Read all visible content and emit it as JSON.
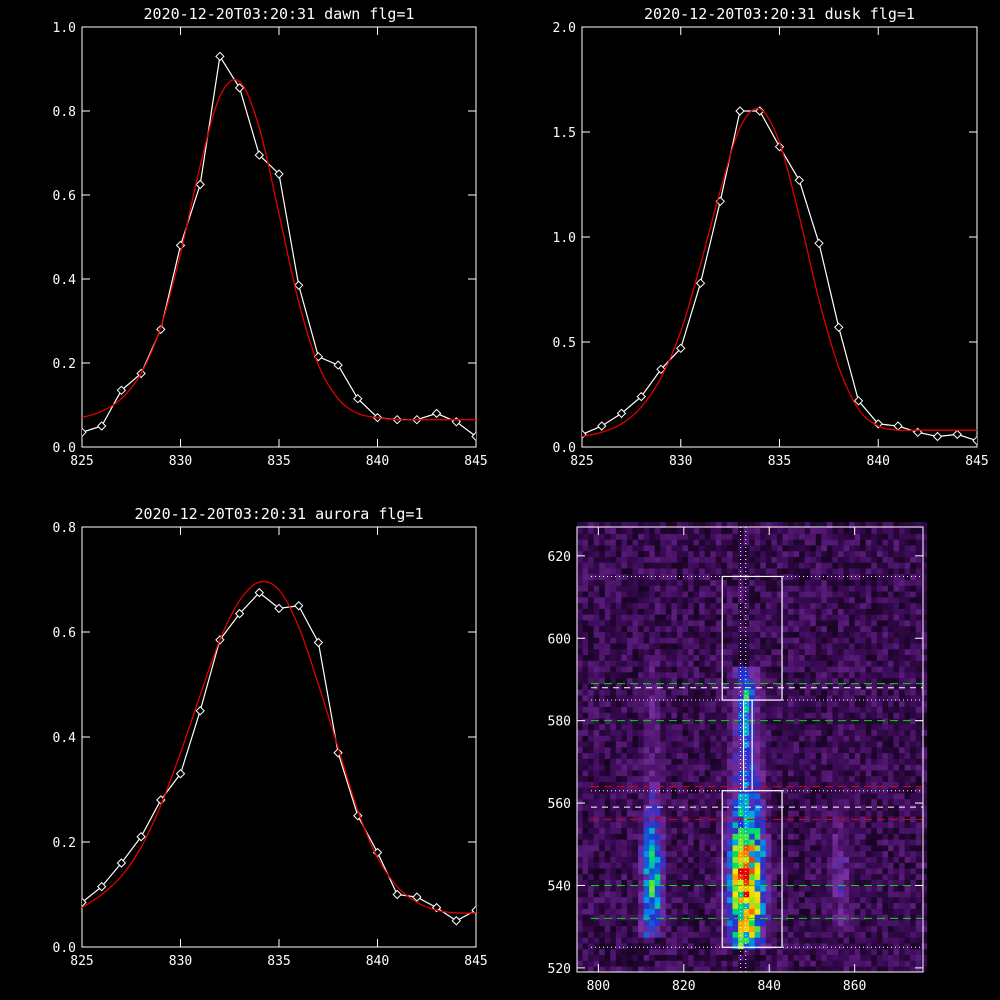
{
  "chart_data": [
    {
      "type": "line",
      "title": "2020-12-20T03:20:31 dawn flg=1",
      "xlim": [
        825,
        845
      ],
      "ylim": [
        0,
        1.0
      ],
      "xticks": [
        825,
        830,
        835,
        840,
        845
      ],
      "yticks": [
        0.0,
        0.2,
        0.4,
        0.6,
        0.8,
        1.0
      ],
      "ytick_labels": [
        "0.0",
        "0.2",
        "0.4",
        "0.6",
        "0.8",
        "1.0"
      ],
      "series": [
        {
          "style": "data",
          "color": "#ffffff",
          "marker": "diamond",
          "x": [
            825,
            826,
            827,
            828,
            829,
            830,
            831,
            832,
            833,
            834,
            835,
            836,
            837,
            838,
            839,
            840,
            841,
            842,
            843,
            844,
            845
          ],
          "y": [
            0.035,
            0.05,
            0.135,
            0.175,
            0.28,
            0.48,
            0.625,
            0.93,
            0.855,
            0.695,
            0.65,
            0.385,
            0.215,
            0.195,
            0.115,
            0.07,
            0.065,
            0.065,
            0.08,
            0.06,
            0.025
          ]
        },
        {
          "style": "fit",
          "color": "#dd0000",
          "x": [
            825,
            826,
            827,
            828,
            829,
            830,
            831,
            832,
            833,
            834,
            835,
            836,
            837,
            838,
            839,
            840,
            841,
            842,
            843,
            844,
            845
          ],
          "y": [
            0.07,
            0.085,
            0.115,
            0.175,
            0.285,
            0.46,
            0.67,
            0.835,
            0.87,
            0.76,
            0.555,
            0.345,
            0.195,
            0.115,
            0.08,
            0.07,
            0.065,
            0.065,
            0.065,
            0.065,
            0.065
          ]
        }
      ]
    },
    {
      "type": "line",
      "title": "2020-12-20T03:20:31 dusk flg=1",
      "xlim": [
        825,
        845
      ],
      "ylim": [
        0,
        2.0
      ],
      "xticks": [
        825,
        830,
        835,
        840,
        845
      ],
      "yticks": [
        0.0,
        0.5,
        1.0,
        1.5,
        2.0
      ],
      "ytick_labels": [
        "0.0",
        "0.5",
        "1.0",
        "1.5",
        "2.0"
      ],
      "series": [
        {
          "style": "data",
          "color": "#ffffff",
          "marker": "diamond",
          "x": [
            825,
            826,
            827,
            828,
            829,
            830,
            831,
            832,
            833,
            834,
            835,
            836,
            837,
            838,
            839,
            840,
            841,
            842,
            843,
            844,
            845
          ],
          "y": [
            0.06,
            0.1,
            0.16,
            0.24,
            0.37,
            0.47,
            0.78,
            1.17,
            1.6,
            1.6,
            1.43,
            1.27,
            0.97,
            0.57,
            0.22,
            0.11,
            0.1,
            0.07,
            0.05,
            0.06,
            0.03
          ]
        },
        {
          "style": "fit",
          "color": "#dd0000",
          "x": [
            825,
            826,
            827,
            828,
            829,
            830,
            831,
            832,
            833,
            834,
            835,
            836,
            837,
            838,
            839,
            840,
            841,
            842,
            843,
            844,
            845
          ],
          "y": [
            0.05,
            0.07,
            0.11,
            0.19,
            0.33,
            0.55,
            0.87,
            1.22,
            1.52,
            1.61,
            1.45,
            1.1,
            0.7,
            0.38,
            0.18,
            0.1,
            0.08,
            0.08,
            0.08,
            0.08,
            0.08
          ]
        }
      ]
    },
    {
      "type": "line",
      "title": "2020-12-20T03:20:31 aurora flg=1",
      "xlim": [
        825,
        845
      ],
      "ylim": [
        0,
        0.8
      ],
      "xticks": [
        825,
        830,
        835,
        840,
        845
      ],
      "yticks": [
        0.0,
        0.2,
        0.4,
        0.6,
        0.8
      ],
      "ytick_labels": [
        "0.0",
        "0.2",
        "0.4",
        "0.6",
        "0.8"
      ],
      "series": [
        {
          "style": "data",
          "color": "#ffffff",
          "marker": "diamond",
          "x": [
            825,
            826,
            827,
            828,
            829,
            830,
            831,
            832,
            833,
            834,
            835,
            836,
            837,
            838,
            839,
            840,
            841,
            842,
            843,
            844,
            845
          ],
          "y": [
            0.085,
            0.115,
            0.16,
            0.21,
            0.28,
            0.33,
            0.45,
            0.585,
            0.635,
            0.675,
            0.645,
            0.65,
            0.58,
            0.37,
            0.25,
            0.18,
            0.1,
            0.095,
            0.075,
            0.05,
            0.07
          ]
        },
        {
          "style": "fit",
          "color": "#dd0000",
          "x": [
            825,
            826,
            827,
            828,
            829,
            830,
            831,
            832,
            833,
            834,
            835,
            836,
            837,
            838,
            839,
            840,
            841,
            842,
            843,
            844,
            845
          ],
          "y": [
            0.075,
            0.1,
            0.135,
            0.19,
            0.27,
            0.37,
            0.48,
            0.585,
            0.66,
            0.695,
            0.68,
            0.61,
            0.5,
            0.38,
            0.26,
            0.17,
            0.115,
            0.085,
            0.07,
            0.065,
            0.065
          ]
        }
      ]
    },
    {
      "type": "heatmap",
      "xlim": [
        795,
        876
      ],
      "ylim": [
        519,
        627
      ],
      "xticks": [
        800,
        820,
        840,
        860
      ],
      "yticks": [
        520,
        540,
        560,
        580,
        600,
        620
      ],
      "colormap": [
        "#000000",
        "#3a0a55",
        "#7a2fa0",
        "#2030d0",
        "#00a0f0",
        "#00e060",
        "#f0f000",
        "#ff8000",
        "#e00000"
      ],
      "columns": [
        {
          "x_center": 812,
          "width": 8,
          "y_range": [
            526,
            594
          ],
          "peak_y": 540,
          "peak": 0.62
        },
        {
          "x_center": 834,
          "width": 12,
          "y_range": [
            524,
            592
          ],
          "peak_y": 540,
          "peak": 1.0
        },
        {
          "x_center": 856,
          "width": 9,
          "y_range": [
            528,
            598
          ],
          "peak_y": 540,
          "peak": 0.3
        },
        {
          "x_center": 834,
          "width": 6,
          "y_range": [
            570,
            590
          ],
          "peak_y": 587,
          "peak": 0.62
        }
      ],
      "boxes": [
        {
          "x": [
            829,
            843
          ],
          "y": [
            585,
            615
          ]
        },
        {
          "x": [
            829,
            843
          ],
          "y": [
            525,
            563
          ]
        },
        {
          "x": [
            834,
            836
          ],
          "y": [
            563,
            585
          ]
        }
      ],
      "vlines_dotted_white": [
        833.3,
        834.5
      ],
      "hlines_dotted_white": [
        615,
        585,
        563,
        525
      ],
      "hlines_dashed_green": [
        589,
        580,
        540,
        532
      ],
      "hlines_dashed_red": [
        564,
        556
      ],
      "hlines_dashed_white": [
        588,
        559
      ]
    }
  ]
}
